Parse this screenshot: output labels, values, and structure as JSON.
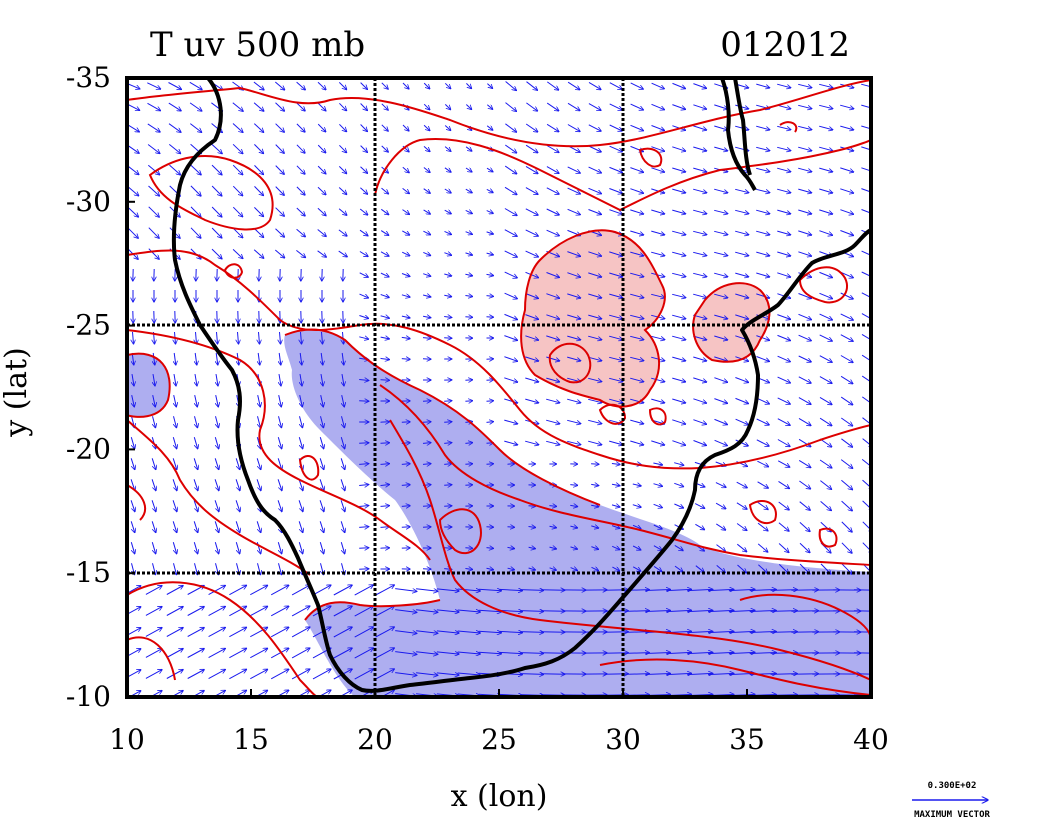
{
  "title_left": "T uv 500 mb",
  "title_right": "012012",
  "x_axis": {
    "label": "x (lon)",
    "range": [
      10,
      40
    ],
    "ticks": [
      10,
      15,
      20,
      25,
      30,
      35,
      40
    ]
  },
  "y_axis": {
    "label": "y (lat)",
    "range": [
      -35,
      -10
    ],
    "ticks": [
      -35,
      -30,
      -25,
      -20,
      -15,
      -10
    ],
    "orientation": "-35 at top, -10 at bottom"
  },
  "gridlines": {
    "x": [
      20,
      30
    ],
    "y": [
      -25,
      -15
    ]
  },
  "vector_legend": {
    "value_text": "0.300E+02",
    "label": "MAXIMUM VECTOR"
  },
  "colors": {
    "coastline": "#000000",
    "contours": "#dd0000",
    "vectors": "#1a1aee",
    "warm_fill": "#f6c4c4",
    "cold_fill": "#aeaef0"
  },
  "icons": {
    "wind-vector": "arrow"
  }
}
